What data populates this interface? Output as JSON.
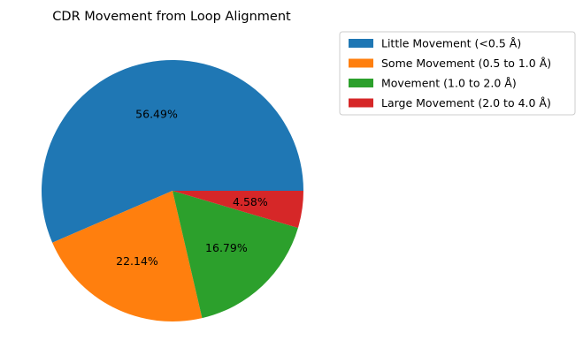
{
  "chart_data": {
    "type": "pie",
    "title": "CDR Movement from Loop Alignment",
    "slices": [
      {
        "label": "Little Movement (<0.5 Å)",
        "value": 56.49,
        "pct_label": "56.49%",
        "color": "#1f77b4"
      },
      {
        "label": "Some Movement (0.5 to 1.0 Å)",
        "value": 22.14,
        "pct_label": "22.14%",
        "color": "#ff7f0e"
      },
      {
        "label": "Movement (1.0 to 2.0 Å)",
        "value": 16.79,
        "pct_label": "16.79%",
        "color": "#2ca02c"
      },
      {
        "label": "Large Movement (2.0 to 4.0 Å)",
        "value": 4.58,
        "pct_label": "4.58%",
        "color": "#d62728"
      }
    ],
    "start_angle_deg": 0,
    "direction": "counterclockwise",
    "legend_placement": "upper-right, outside plot"
  }
}
